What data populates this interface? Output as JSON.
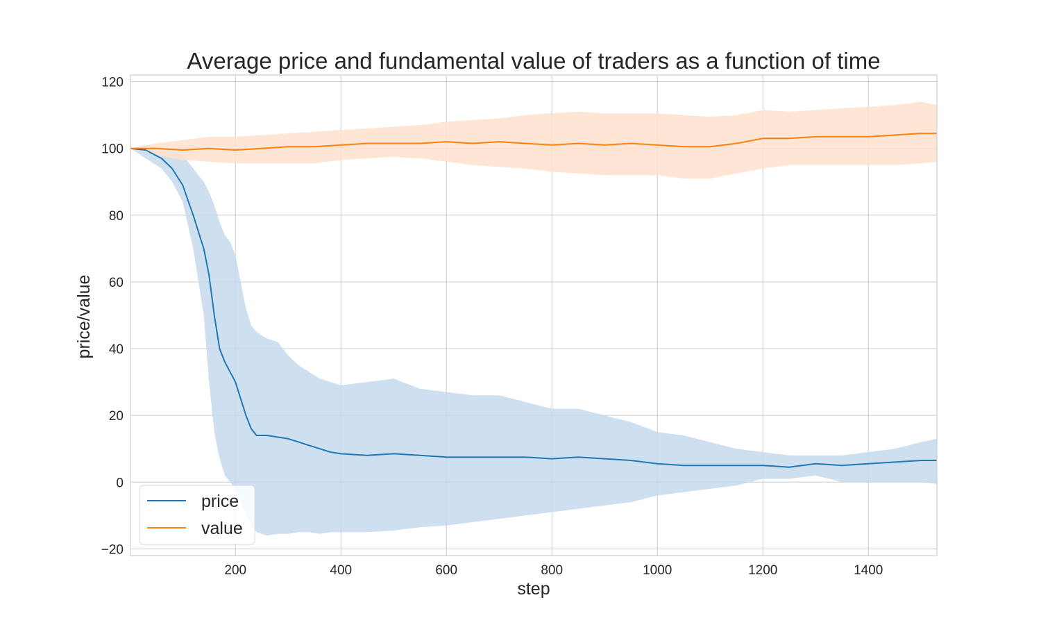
{
  "chart_data": {
    "type": "line",
    "title": "Average price and fundamental value of traders as a function of time",
    "xlabel": "step",
    "ylabel": "price/value",
    "xlim": [
      1,
      1530
    ],
    "ylim": [
      -22,
      122
    ],
    "xticks": [
      200,
      400,
      600,
      800,
      1000,
      1200,
      1400
    ],
    "yticks": [
      -20,
      0,
      20,
      40,
      60,
      80,
      100,
      120
    ],
    "xtick_labels": [
      "200",
      "400",
      "600",
      "800",
      "1000",
      "1200",
      "1400"
    ],
    "ytick_labels": [
      "−20",
      "0",
      "20",
      "40",
      "60",
      "80",
      "100",
      "120"
    ],
    "grid": true,
    "legend_position": "lower-left",
    "series": [
      {
        "name": "price",
        "color": "#1f77b4",
        "band_color": "#c6dbec",
        "x": [
          1,
          30,
          60,
          80,
          100,
          120,
          140,
          150,
          160,
          170,
          180,
          190,
          200,
          210,
          220,
          230,
          240,
          260,
          280,
          300,
          320,
          340,
          360,
          380,
          400,
          450,
          500,
          550,
          600,
          650,
          700,
          750,
          800,
          850,
          900,
          950,
          1000,
          1050,
          1100,
          1150,
          1200,
          1250,
          1300,
          1350,
          1400,
          1450,
          1500,
          1530
        ],
        "y": [
          100,
          99.5,
          97,
          94,
          89,
          80,
          70,
          62,
          50,
          40,
          36,
          33,
          30,
          25,
          20,
          16,
          14,
          14,
          13.5,
          13,
          12,
          11,
          10,
          9,
          8.5,
          8,
          8.5,
          8,
          7.5,
          7.5,
          7.5,
          7.5,
          7,
          7.5,
          7,
          6.5,
          5.5,
          5,
          5,
          5,
          5,
          4.5,
          5.5,
          5,
          5.5,
          6,
          6.5,
          6.5
        ],
        "lower": [
          100,
          97,
          94,
          90,
          84,
          70,
          50,
          30,
          15,
          7,
          2,
          0,
          -2,
          -6,
          -10,
          -13,
          -15,
          -16,
          -15.5,
          -15.5,
          -15,
          -15,
          -15.5,
          -15,
          -15,
          -15,
          -14.5,
          -13.5,
          -13,
          -12,
          -11,
          -10,
          -9,
          -8,
          -7,
          -6,
          -4,
          -3,
          -2,
          -1,
          1,
          1,
          2,
          0,
          0,
          0,
          0,
          -0.5
        ],
        "upper": [
          100,
          101,
          100,
          99,
          98,
          94,
          90,
          87,
          83,
          78,
          74,
          72,
          68,
          60,
          52,
          47,
          45,
          43,
          42,
          38,
          35,
          33,
          31,
          30,
          29,
          30,
          31,
          28,
          27,
          26,
          26,
          24,
          22,
          22,
          20,
          18,
          15,
          14,
          12,
          10,
          9,
          8,
          8,
          8,
          9,
          10,
          12,
          13
        ]
      },
      {
        "name": "value",
        "color": "#ff7f0e",
        "band_color": "#ffe2cc",
        "x": [
          1,
          50,
          100,
          150,
          200,
          250,
          300,
          350,
          400,
          450,
          500,
          550,
          600,
          650,
          700,
          750,
          800,
          850,
          900,
          950,
          1000,
          1050,
          1100,
          1150,
          1200,
          1250,
          1300,
          1350,
          1400,
          1450,
          1500,
          1530
        ],
        "y": [
          100,
          100,
          99.5,
          100,
          99.5,
          100,
          100.5,
          100.5,
          101,
          101.5,
          101.5,
          101.5,
          102,
          101.5,
          102,
          101.5,
          101,
          101.5,
          101,
          101.5,
          101,
          100.5,
          100.5,
          101.5,
          103,
          103,
          103.5,
          103.5,
          103.5,
          104,
          104.5,
          104.5
        ],
        "lower": [
          100,
          98,
          96.5,
          96,
          95.5,
          95.5,
          95.5,
          95.5,
          96.5,
          97,
          97.5,
          97,
          96,
          95,
          94.5,
          94,
          93,
          92.5,
          92,
          92,
          92,
          91,
          91,
          92.5,
          94,
          95,
          95,
          95,
          95,
          95,
          95.5,
          96
        ],
        "upper": [
          100,
          101.5,
          102.5,
          103.5,
          103.5,
          104,
          104.5,
          105,
          105.5,
          106,
          106.5,
          107,
          108,
          108.5,
          109,
          110,
          110.5,
          111,
          110.5,
          110.5,
          110.5,
          110,
          109.5,
          110,
          111.5,
          111,
          111.5,
          112,
          112.5,
          113,
          114,
          113
        ]
      }
    ]
  }
}
